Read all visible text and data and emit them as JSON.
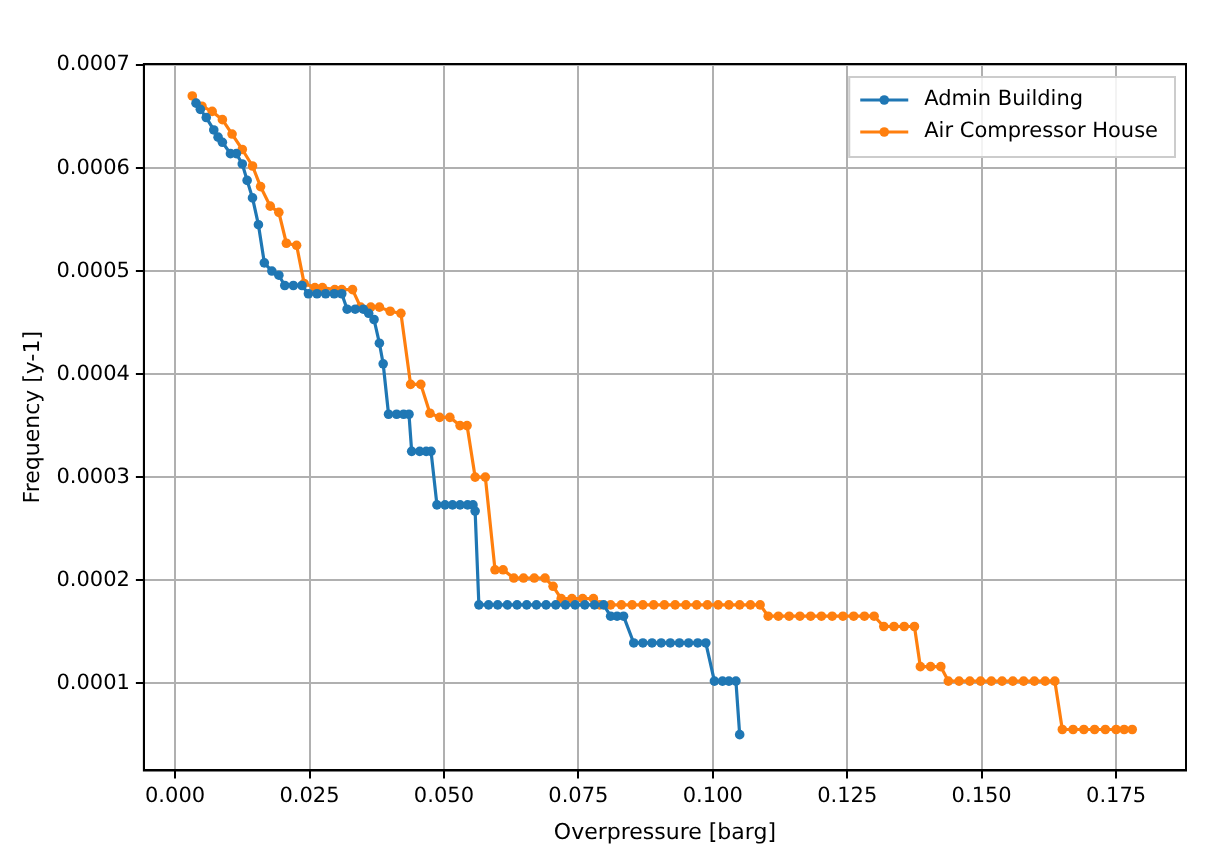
{
  "chart_data": {
    "type": "line",
    "xlabel": "Overpressure [barg]",
    "ylabel": "Frequency [y-1]",
    "xlim": [
      -0.0058,
      0.188
    ],
    "ylim": [
      1.53e-05,
      0.000701
    ],
    "xticks": [
      {
        "value": 0,
        "label": "0.000"
      },
      {
        "value": 0.025,
        "label": "0.025"
      },
      {
        "value": 0.05,
        "label": "0.050"
      },
      {
        "value": 0.075,
        "label": "0.075"
      },
      {
        "value": 0.1,
        "label": "0.100"
      },
      {
        "value": 0.125,
        "label": "0.125"
      },
      {
        "value": 0.15,
        "label": "0.150"
      },
      {
        "value": 0.175,
        "label": "0.175"
      }
    ],
    "yticks": [
      0.0001,
      0.0002,
      0.0003,
      0.0004,
      0.0005,
      0.0006,
      0.0007
    ],
    "grid": true,
    "legend": "top right",
    "marker": "circle",
    "line_style": "solid",
    "series": [
      {
        "name": "Admin Building",
        "color": "#1f77b4",
        "x": [
          0.0039,
          0.0047,
          0.0058,
          0.0072,
          0.008,
          0.0088,
          0.0103,
          0.0114,
          0.0125,
          0.0134,
          0.0144,
          0.0155,
          0.0166,
          0.018,
          0.0193,
          0.0204,
          0.022,
          0.0236,
          0.0248,
          0.0264,
          0.028,
          0.0296,
          0.031,
          0.032,
          0.0335,
          0.035,
          0.036,
          0.037,
          0.038,
          0.0387,
          0.0397,
          0.0412,
          0.0425,
          0.0435,
          0.044,
          0.0455,
          0.0467,
          0.0476,
          0.0487,
          0.0502,
          0.0516,
          0.053,
          0.0544,
          0.0554,
          0.0558,
          0.0565,
          0.0583,
          0.06,
          0.0618,
          0.0636,
          0.0654,
          0.0672,
          0.069,
          0.0708,
          0.0726,
          0.0744,
          0.0762,
          0.078,
          0.0797,
          0.081,
          0.0822,
          0.0834,
          0.0853,
          0.087,
          0.0887,
          0.0904,
          0.0921,
          0.0938,
          0.0955,
          0.0972,
          0.0987,
          0.1003,
          0.1018,
          0.103,
          0.1043,
          0.105
        ],
        "values": [
          0.000663,
          0.000657,
          0.000649,
          0.000637,
          0.00063,
          0.000625,
          0.000614,
          0.000614,
          0.000604,
          0.000588,
          0.000571,
          0.000545,
          0.000508,
          0.0005,
          0.000496,
          0.000486,
          0.000486,
          0.000486,
          0.000478,
          0.000478,
          0.000478,
          0.000478,
          0.000478,
          0.000463,
          0.000463,
          0.000463,
          0.000459,
          0.000453,
          0.00043,
          0.00041,
          0.000361,
          0.000361,
          0.000361,
          0.000361,
          0.000325,
          0.000325,
          0.000325,
          0.000325,
          0.000273,
          0.000273,
          0.000273,
          0.000273,
          0.000273,
          0.000273,
          0.000267,
          0.000176,
          0.000176,
          0.000176,
          0.000176,
          0.000176,
          0.000176,
          0.000176,
          0.000176,
          0.000176,
          0.000176,
          0.000176,
          0.000176,
          0.000176,
          0.000176,
          0.000165,
          0.000165,
          0.000165,
          0.000139,
          0.000139,
          0.000139,
          0.000139,
          0.000139,
          0.000139,
          0.000139,
          0.000139,
          0.000139,
          0.000102,
          0.000102,
          0.000102,
          0.000102,
          5e-05
        ]
      },
      {
        "name": "Air Compressor House",
        "color": "#ff7f0e",
        "x": [
          0.0032,
          0.005,
          0.0069,
          0.0088,
          0.0106,
          0.0125,
          0.0144,
          0.0159,
          0.0177,
          0.0193,
          0.0207,
          0.0226,
          0.024,
          0.026,
          0.0274,
          0.0297,
          0.031,
          0.033,
          0.0345,
          0.0364,
          0.038,
          0.04,
          0.042,
          0.0438,
          0.0457,
          0.0474,
          0.0492,
          0.0511,
          0.053,
          0.0543,
          0.0558,
          0.0577,
          0.0595,
          0.061,
          0.063,
          0.0648,
          0.0668,
          0.0688,
          0.0703,
          0.0718,
          0.0738,
          0.0758,
          0.0778,
          0.079,
          0.081,
          0.083,
          0.085,
          0.087,
          0.089,
          0.091,
          0.093,
          0.095,
          0.097,
          0.099,
          0.101,
          0.103,
          0.105,
          0.107,
          0.1088,
          0.1103,
          0.1122,
          0.1142,
          0.1162,
          0.1182,
          0.1202,
          0.1222,
          0.1242,
          0.1262,
          0.1282,
          0.13,
          0.1318,
          0.1337,
          0.1356,
          0.1375,
          0.1386,
          0.1405,
          0.1424,
          0.1438,
          0.1458,
          0.1478,
          0.1498,
          0.1518,
          0.1538,
          0.1558,
          0.1578,
          0.1598,
          0.1618,
          0.1636,
          0.165,
          0.167,
          0.169,
          0.171,
          0.173,
          0.175,
          0.1765,
          0.178
        ],
        "values": [
          0.00067,
          0.00066,
          0.000655,
          0.000647,
          0.000633,
          0.000618,
          0.000602,
          0.000582,
          0.000563,
          0.000557,
          0.000527,
          0.000525,
          0.000488,
          0.000484,
          0.000484,
          0.000482,
          0.000482,
          0.000482,
          0.000465,
          0.000465,
          0.000465,
          0.000461,
          0.000459,
          0.00039,
          0.00039,
          0.000362,
          0.000358,
          0.000358,
          0.00035,
          0.00035,
          0.0003,
          0.0003,
          0.00021,
          0.00021,
          0.000202,
          0.000202,
          0.000202,
          0.000202,
          0.000194,
          0.000182,
          0.000182,
          0.000182,
          0.000182,
          0.000176,
          0.000176,
          0.000176,
          0.000176,
          0.000176,
          0.000176,
          0.000176,
          0.000176,
          0.000176,
          0.000176,
          0.000176,
          0.000176,
          0.000176,
          0.000176,
          0.000176,
          0.000176,
          0.000165,
          0.000165,
          0.000165,
          0.000165,
          0.000165,
          0.000165,
          0.000165,
          0.000165,
          0.000165,
          0.000165,
          0.000165,
          0.000155,
          0.000155,
          0.000155,
          0.000155,
          0.000116,
          0.000116,
          0.000116,
          0.000102,
          0.000102,
          0.000102,
          0.000102,
          0.000102,
          0.000102,
          0.000102,
          0.000102,
          0.000102,
          0.000102,
          0.000102,
          5.5e-05,
          5.5e-05,
          5.5e-05,
          5.5e-05,
          5.5e-05,
          5.5e-05,
          5.5e-05,
          5.5e-05
        ]
      }
    ]
  }
}
